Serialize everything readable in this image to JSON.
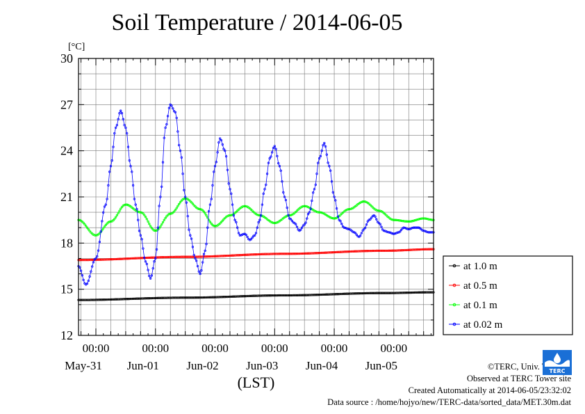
{
  "chart_data": {
    "type": "line",
    "title": "Soil Temperature / 2014-06-05",
    "ylabel": "[°C]",
    "xlabel": "(LST)",
    "x_unit": "hours from 2014-05-30 00:00 LST",
    "xlim": [
      17,
      160
    ],
    "ylim": [
      12,
      30
    ],
    "yticks": [
      12,
      15,
      18,
      21,
      24,
      27,
      30
    ],
    "xticks": [
      {
        "x": 24,
        "time": "00:00",
        "date": "May-31"
      },
      {
        "x": 48,
        "time": "00:00",
        "date": "Jun-01"
      },
      {
        "x": 72,
        "time": "00:00",
        "date": "Jun-02"
      },
      {
        "x": 96,
        "time": "00:00",
        "date": "Jun-03"
      },
      {
        "x": 120,
        "time": "00:00",
        "date": "Jun-04"
      },
      {
        "x": 144,
        "time": "00:00",
        "date": "Jun-05"
      }
    ],
    "grid": true,
    "legend_position": "right",
    "series": [
      {
        "name": "at 1.0 m",
        "color": "#000000",
        "x": [
          17,
          60,
          100,
          140,
          160
        ],
        "y": [
          14.3,
          14.45,
          14.6,
          14.75,
          14.8
        ]
      },
      {
        "name": "at 0.5 m",
        "color": "#ff0000",
        "x": [
          17,
          60,
          100,
          140,
          160
        ],
        "y": [
          16.9,
          17.1,
          17.3,
          17.5,
          17.6
        ]
      },
      {
        "name": "at 0.1 m",
        "color": "#00ff00",
        "x": [
          17,
          24,
          30,
          36,
          42,
          48,
          54,
          60,
          66,
          72,
          78,
          84,
          90,
          96,
          102,
          108,
          114,
          120,
          126,
          132,
          138,
          144,
          150,
          156,
          160
        ],
        "y": [
          19.5,
          18.5,
          19.4,
          20.5,
          20.0,
          18.8,
          19.9,
          20.9,
          20.2,
          19.1,
          19.8,
          20.4,
          19.8,
          19.3,
          19.8,
          20.4,
          20.0,
          19.6,
          20.2,
          20.7,
          20.1,
          19.5,
          19.4,
          19.6,
          19.5
        ]
      },
      {
        "name": "at 0.02 m",
        "color": "#0000ff",
        "x": [
          17,
          20,
          24,
          28,
          30,
          32,
          34,
          36,
          38,
          40,
          42,
          44,
          46,
          48,
          50,
          52,
          54,
          56,
          58,
          60,
          62,
          64,
          66,
          68,
          70,
          72,
          74,
          76,
          78,
          80,
          82,
          84,
          86,
          88,
          90,
          92,
          94,
          96,
          98,
          100,
          102,
          104,
          106,
          108,
          110,
          112,
          114,
          116,
          118,
          120,
          122,
          124,
          126,
          128,
          130,
          132,
          134,
          136,
          138,
          140,
          142,
          144,
          146,
          148,
          150,
          152,
          154,
          156,
          158,
          160
        ],
        "y": [
          16.5,
          15.3,
          17.0,
          20.5,
          23.0,
          25.5,
          26.6,
          25.5,
          23.0,
          20.5,
          18.5,
          16.8,
          15.7,
          17.0,
          21.0,
          25.5,
          27.0,
          26.5,
          24.0,
          21.0,
          18.5,
          17.0,
          16.0,
          17.5,
          20.5,
          23.0,
          24.8,
          24.0,
          21.5,
          19.5,
          18.5,
          18.6,
          18.2,
          18.5,
          19.5,
          21.5,
          23.5,
          24.3,
          23.0,
          21.0,
          19.6,
          19.3,
          18.8,
          19.2,
          20.0,
          21.5,
          23.5,
          24.5,
          23.0,
          21.0,
          19.5,
          19.0,
          18.9,
          18.7,
          18.4,
          18.9,
          19.5,
          19.8,
          19.3,
          18.8,
          18.7,
          18.6,
          18.7,
          19.0,
          18.9,
          19.0,
          19.0,
          18.8,
          18.7,
          18.7
        ]
      }
    ]
  },
  "credits": {
    "copyright": "©TERC, Univ. Tsukuba",
    "site": "Observed at TERC Tower site",
    "created": "Created Automatically at 2014-06-05/23:32:02",
    "source": "Data source : /home/hojyo/new/TERC-data/sorted_data/MET.30m.dat"
  },
  "logo": {
    "name": "terc-logo-icon",
    "text": "TERC",
    "color": "#1a6fd6"
  }
}
